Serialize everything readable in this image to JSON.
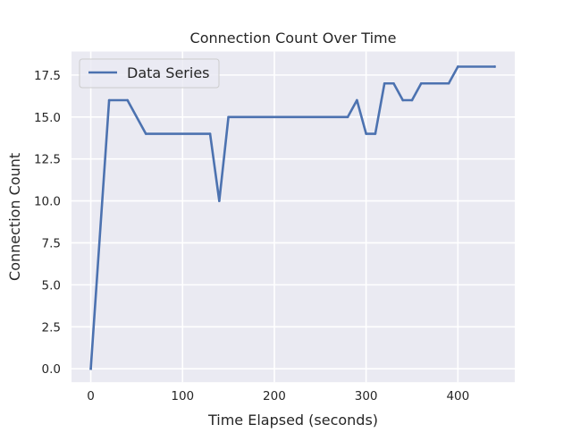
{
  "chart_data": {
    "type": "line",
    "title": "Connection Count Over Time",
    "xlabel": "Time Elapsed (seconds)",
    "ylabel": "Connection Count",
    "xlim": [
      -21,
      462
    ],
    "ylim": [
      -0.8,
      18.9
    ],
    "xticks": [
      0,
      100,
      200,
      300,
      400
    ],
    "xtick_labels": [
      "0",
      "100",
      "200",
      "300",
      "400"
    ],
    "yticks": [
      0,
      2.5,
      5,
      7.5,
      10,
      12.5,
      15,
      17.5
    ],
    "ytick_labels": [
      "0.0",
      "2.5",
      "5.0",
      "7.5",
      "10.0",
      "12.5",
      "15.0",
      "17.5"
    ],
    "grid": true,
    "legend_position": "top-left",
    "series": [
      {
        "name": "Data Series",
        "color": "#4c72b0",
        "x": [
          0,
          20,
          40,
          60,
          130,
          140,
          150,
          280,
          290,
          300,
          310,
          320,
          330,
          340,
          350,
          360,
          390,
          400,
          440
        ],
        "y": [
          0,
          16,
          16,
          14,
          14,
          10,
          15,
          15,
          16,
          14,
          14,
          17,
          17,
          16,
          16,
          17,
          17,
          18,
          18
        ]
      }
    ]
  }
}
